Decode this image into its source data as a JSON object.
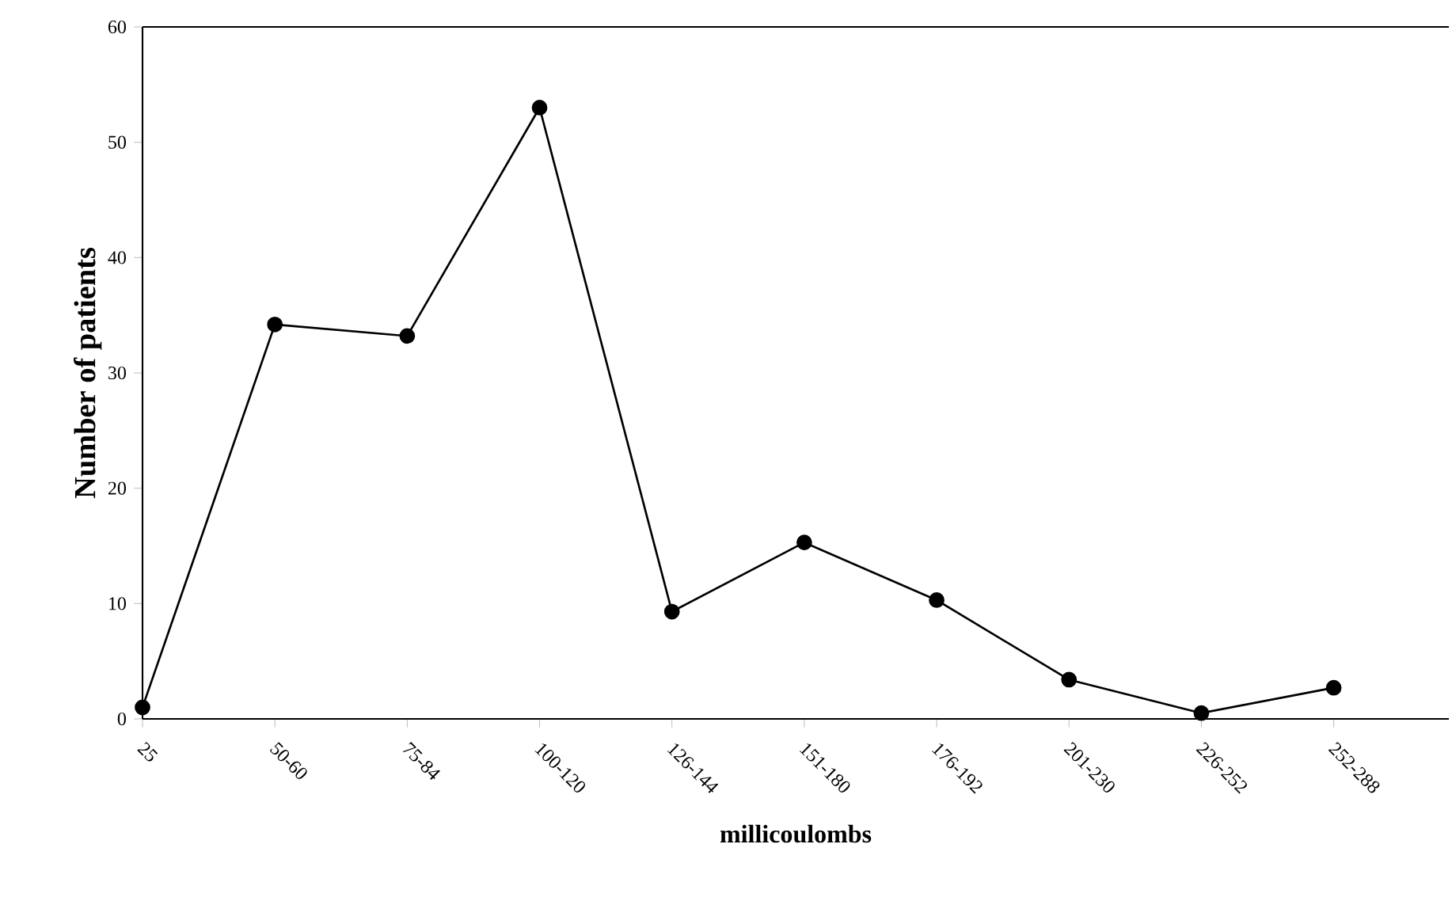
{
  "chart_data": {
    "type": "line",
    "xlabel": "millicoulombs",
    "ylabel": "Number of patients",
    "categories": [
      "25",
      "50-60",
      "75-84",
      "100-120",
      "126-144",
      "151-180",
      "176-192",
      "201-230",
      "226-252",
      "252-288"
    ],
    "values": [
      1,
      34.2,
      33.2,
      53,
      9.3,
      15.3,
      10.3,
      3.4,
      0.5,
      2.7
    ],
    "color": "#000000",
    "marker": "circle",
    "line_style": "solid",
    "ylim": [
      0,
      60
    ],
    "yticks": [
      0,
      10,
      20,
      30,
      40,
      50,
      60
    ]
  }
}
